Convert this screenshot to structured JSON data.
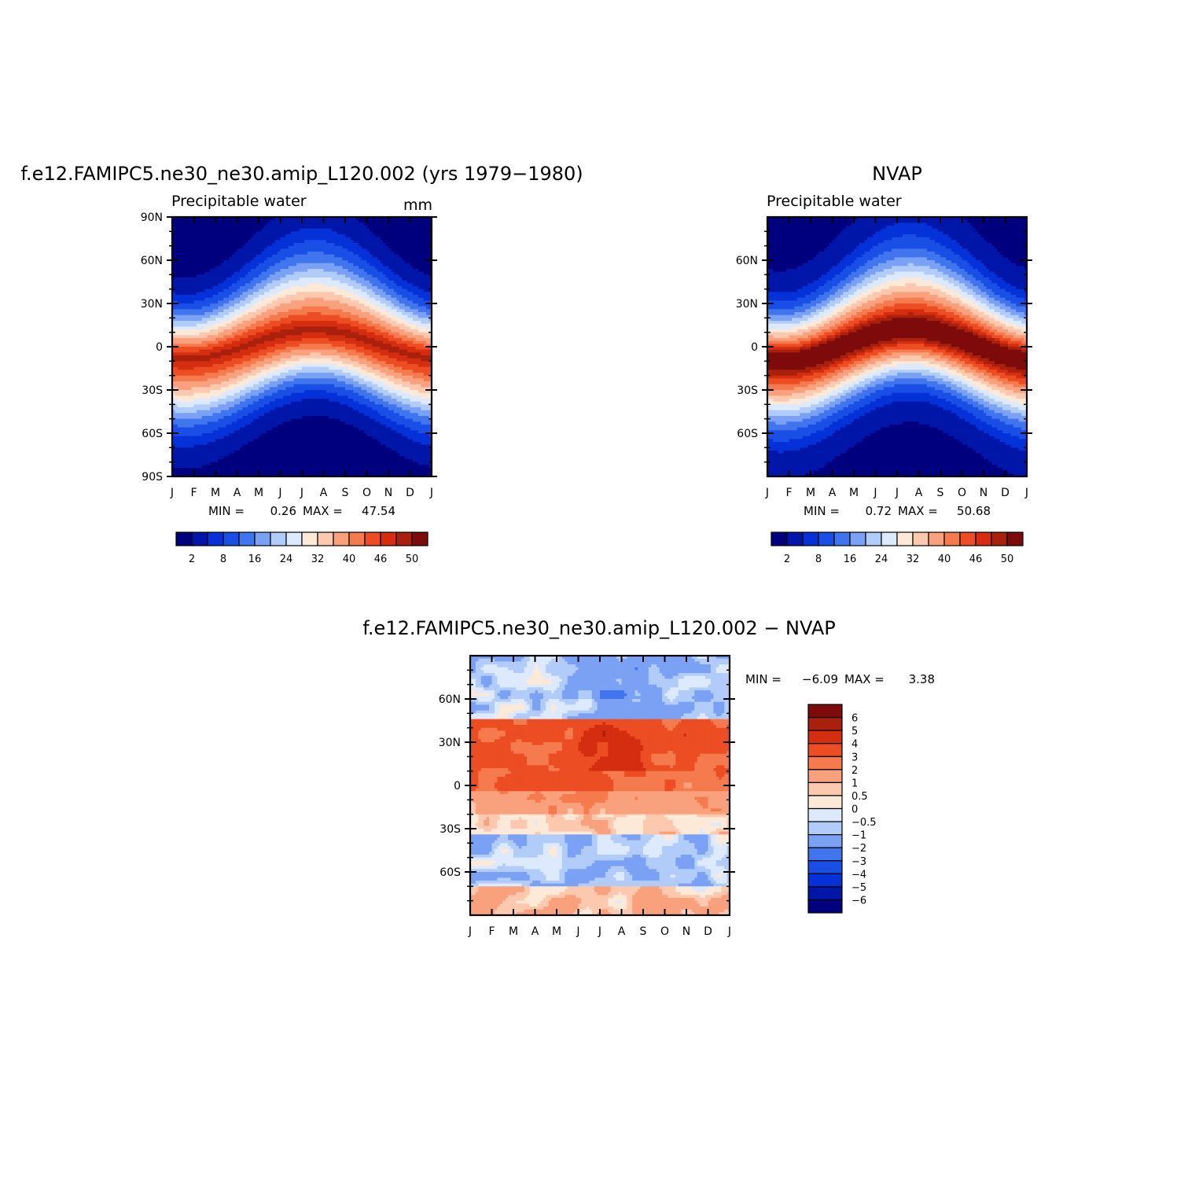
{
  "chart_data": [
    {
      "type": "heatmap",
      "title": "f.e12.FAMIPC5.ne30_ne30.amip_L120.002 (yrs 1979−1980)",
      "subtitle_left": "Precipitable water",
      "subtitle_right": "mm",
      "x_ticks": [
        "J",
        "F",
        "M",
        "A",
        "M",
        "J",
        "J",
        "A",
        "S",
        "O",
        "N",
        "D",
        "J"
      ],
      "y_ticks": [
        "90N",
        "60N",
        "30N",
        "0",
        "30S",
        "60S",
        "90S"
      ],
      "ylim": [
        -90,
        90
      ],
      "min_label": "MIN =",
      "min_value": "0.26",
      "max_label": "MAX =",
      "max_value": "47.54",
      "colorbar_labels": [
        "2",
        "8",
        "16",
        "24",
        "32",
        "40",
        "46",
        "50"
      ],
      "colors": [
        "#00007f",
        "#0016a8",
        "#0432d8",
        "#1a4fe6",
        "#4175ee",
        "#7aa1f4",
        "#b2ccf9",
        "#dde9fc",
        "#fde9d8",
        "#fcc8ae",
        "#f9a07d",
        "#f57a4e",
        "#ec4d23",
        "#d42d10",
        "#a9200c",
        "#7e0b0b"
      ],
      "field": {
        "equator_max": 45,
        "max_shift_deg": 10,
        "pole_floor": 1
      }
    },
    {
      "type": "heatmap",
      "title": "NVAP",
      "subtitle_left": "Precipitable water",
      "x_ticks": [
        "J",
        "F",
        "M",
        "A",
        "M",
        "J",
        "J",
        "A",
        "S",
        "O",
        "N",
        "D",
        "J"
      ],
      "y_ticks": [
        "60N",
        "30N",
        "0",
        "30S",
        "60S"
      ],
      "ylim": [
        -90,
        90
      ],
      "min_label": "MIN =",
      "min_value": "0.72",
      "max_label": "MAX =",
      "max_value": "50.68",
      "colorbar_labels": [
        "2",
        "8",
        "16",
        "24",
        "32",
        "40",
        "46",
        "50"
      ],
      "colors": [
        "#00007f",
        "#0016a8",
        "#0432d8",
        "#1a4fe6",
        "#4175ee",
        "#7aa1f4",
        "#b2ccf9",
        "#dde9fc",
        "#fde9d8",
        "#fcc8ae",
        "#f9a07d",
        "#f57a4e",
        "#ec4d23",
        "#d42d10",
        "#a9200c",
        "#7e0b0b"
      ],
      "field": {
        "equator_max": 49,
        "max_shift_deg": 11,
        "pole_floor": 1.5
      }
    },
    {
      "type": "heatmap",
      "title": "f.e12.FAMIPC5.ne30_ne30.amip_L120.002 − NVAP",
      "x_ticks": [
        "J",
        "F",
        "M",
        "A",
        "M",
        "J",
        "J",
        "A",
        "S",
        "O",
        "N",
        "D",
        "J"
      ],
      "y_ticks": [
        "60N",
        "30N",
        "0",
        "30S",
        "60S"
      ],
      "ylim": [
        -90,
        90
      ],
      "min_label": "MIN =",
      "min_value": "−6.09",
      "max_label": "MAX =",
      "max_value": "3.38",
      "colorbar_labels": [
        "6",
        "5",
        "4",
        "3",
        "2",
        "1",
        "0.5",
        "0",
        "−0.5",
        "−1",
        "−2",
        "−3",
        "−4",
        "−5",
        "−6"
      ],
      "colors": [
        "#7e0b0b",
        "#a9200c",
        "#d42d10",
        "#ec4d23",
        "#f57a4e",
        "#f9a07d",
        "#fcc8ae",
        "#fde9d8",
        "#dde9fc",
        "#b2ccf9",
        "#7aa1f4",
        "#4175ee",
        "#1a4fe6",
        "#0432d8",
        "#0016a8",
        "#00007f"
      ]
    }
  ]
}
